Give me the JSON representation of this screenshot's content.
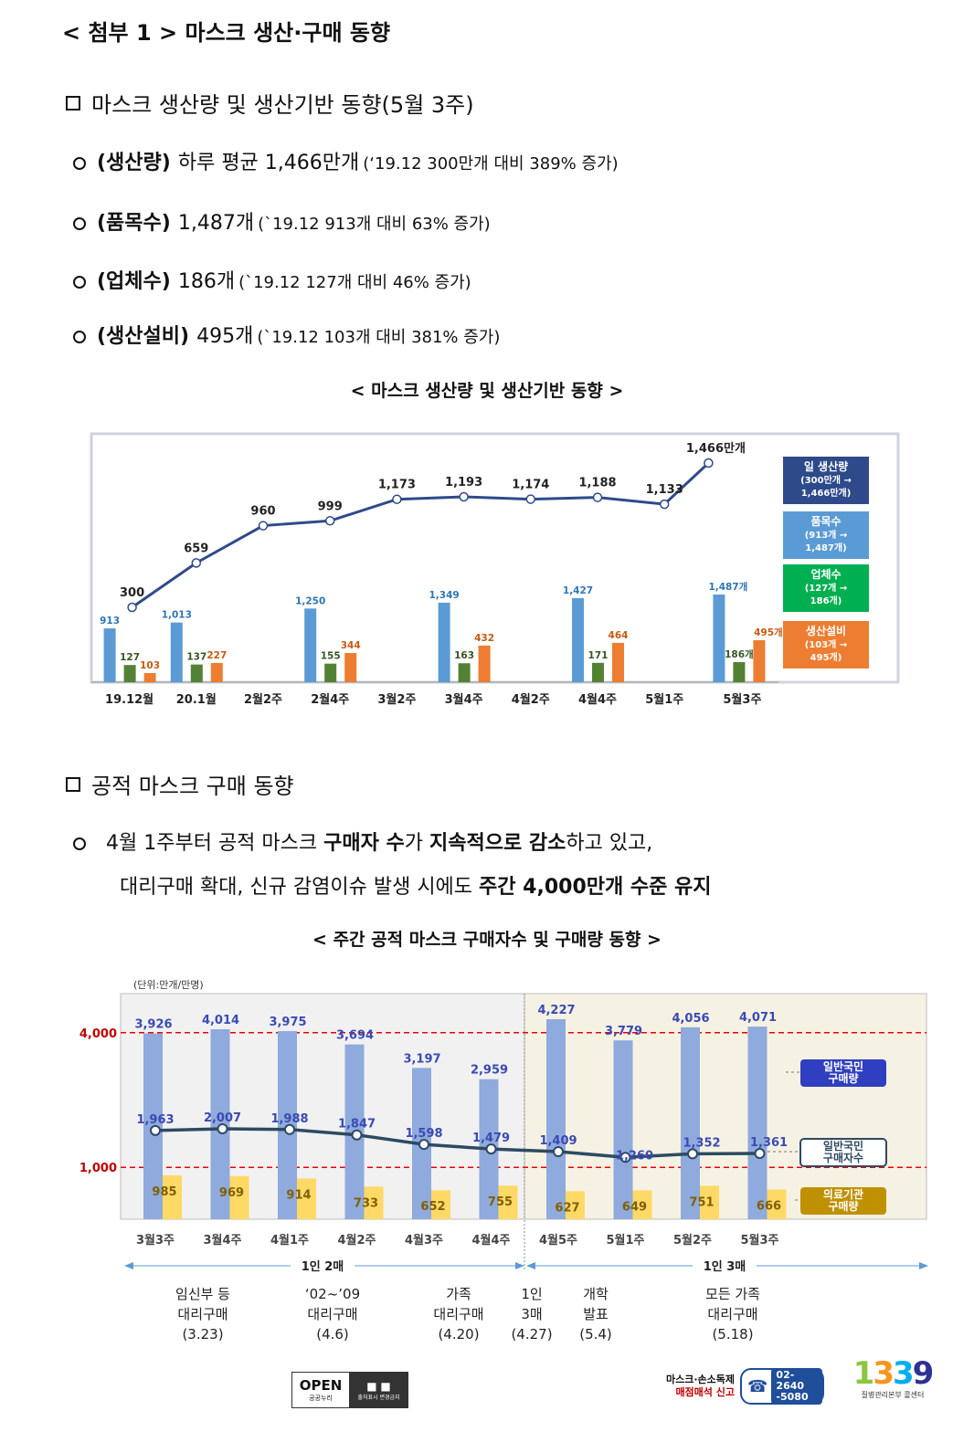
{
  "title": "< 첨부 1 > 마스크 생산·구매 동향",
  "section1": {
    "heading": "마스크 생산량 및 생산기반 동향(5월 3주)",
    "bullets": [
      {
        "label": "(생산량)",
        "value": "하루 평균 1,466만개",
        "note": "(‘19.12 300만개 대비 389% 증가)"
      },
      {
        "label": "(품목수)",
        "value": "1,487개",
        "note": "(`19.12 913개 대비  63% 증가)"
      },
      {
        "label": "(업체수)",
        "value": "186개",
        "note": "(`19.12 127개 대비 46% 증가)"
      },
      {
        "label": "(생산설비)",
        "value": "495개",
        "note": "(`19.12 103개 대비 381% 증가)"
      }
    ],
    "chart_caption": "< 마스크 생산량 및 생산기반 동향 >"
  },
  "section2": {
    "heading": "공적 마스크 구매 동향",
    "para": {
      "line1": [
        "4월 1주부터 공적 마스크 ",
        "구매자 수",
        "가 ",
        "지속적으로 감소",
        "하고 있고,"
      ],
      "line2": [
        "대리구매 확대, 신규 감염이슈 발생 시에도 ",
        "주간 4,000만개 수준 유지"
      ]
    },
    "chart_caption": "< 주간 공적 마스크 구매자수 및 구매량 동향 >"
  },
  "chart_data": [
    {
      "type": "bar",
      "title": "< 마스크 생산량 및 생산기반 동향 >",
      "categories": [
        "19.12월",
        "20.1월",
        "2월2주",
        "2월4주",
        "3월2주",
        "3월4주",
        "4월2주",
        "4월4주",
        "5월1주",
        "5월3주"
      ],
      "line_series": {
        "name": "일 생산량",
        "values": [
          300,
          659,
          960,
          999,
          1173,
          1193,
          1174,
          1188,
          1133,
          1466
        ],
        "labels": [
          "300",
          "659",
          "960",
          "999",
          "1,173",
          "1,193",
          "1,174",
          "1,188",
          "1,133",
          "1,466만개"
        ]
      },
      "bar_series": [
        {
          "name": "품목수",
          "color": "#5b9bd5",
          "values": [
            913,
            1013,
            null,
            1250,
            null,
            1349,
            null,
            1427,
            null,
            1487
          ],
          "labels": [
            "913",
            "1,013",
            "",
            "1,250",
            "",
            "1,349",
            "",
            "1,427",
            "",
            "1,487개"
          ]
        },
        {
          "name": "업체수",
          "color": "#548235",
          "values": [
            127,
            137,
            null,
            155,
            null,
            163,
            null,
            171,
            null,
            186
          ],
          "labels": [
            "127",
            "137",
            "",
            "155",
            "",
            "163",
            "",
            "171",
            "",
            "186개"
          ]
        },
        {
          "name": "생산설비",
          "color": "#ed7d31",
          "values": [
            103,
            227,
            null,
            344,
            null,
            432,
            null,
            464,
            null,
            495
          ],
          "labels": [
            "103",
            "227",
            "",
            "344",
            "",
            "432",
            "",
            "464",
            "",
            "495개"
          ]
        }
      ],
      "legend": [
        {
          "text": [
            "일 생산량",
            "(300만개 →",
            "1,466만개)"
          ],
          "color": "#2f4a8a"
        },
        {
          "text": [
            "품목수",
            "(913개 →",
            "1,487개)"
          ],
          "color": "#5b9bd5"
        },
        {
          "text": [
            "업체수",
            "(127개 →",
            "186개)"
          ],
          "color": "#00b050"
        },
        {
          "text": [
            "생산설비",
            "(103개 →",
            "495개)"
          ],
          "color": "#ed7d31"
        }
      ],
      "legend_position": "right"
    },
    {
      "type": "bar",
      "title": "< 주간 공적 마스크 구매자수 및 구매량 동향 >",
      "unit": "(단위:만개/만명)",
      "categories": [
        "3월3주",
        "3월4주",
        "4월1주",
        "4월2주",
        "4월3주",
        "4월4주",
        "4월5주",
        "5월1주",
        "5월2주",
        "5월3주"
      ],
      "series": [
        {
          "name": "일반국민 구매량",
          "type": "bar",
          "color": "#8faadc",
          "values": [
            3926,
            4014,
            3975,
            3694,
            3197,
            2959,
            4227,
            3779,
            4056,
            4071
          ],
          "labels": [
            "3,926",
            "4,014",
            "3,975",
            "3,694",
            "3,197",
            "2,959",
            "4,227",
            "3,779",
            "4,056",
            "4,071"
          ]
        },
        {
          "name": "일반국민 구매자수",
          "type": "line",
          "color": "#2e4a62",
          "values": [
            1963,
            2007,
            1988,
            1847,
            1598,
            1479,
            1409,
            1260,
            1352,
            1361
          ],
          "labels": [
            "1,963",
            "2,007",
            "1,988",
            "1,847",
            "1,598",
            "1,479",
            "1,409",
            "1,260",
            "1,352",
            "1,361"
          ]
        },
        {
          "name": "의료기관 구매량",
          "type": "bar",
          "color": "#ffd966",
          "values": [
            985,
            969,
            914,
            733,
            652,
            755,
            627,
            649,
            751,
            666
          ],
          "labels": [
            "985",
            "969",
            "914",
            "733",
            "652",
            "755",
            "627",
            "649",
            "751",
            "666"
          ]
        }
      ],
      "reference_lines": [
        {
          "value": 4000,
          "label": "4,000"
        },
        {
          "value": 1000,
          "label": "1,000"
        }
      ],
      "legend": [
        {
          "text": [
            "일반국민",
            "구매량"
          ],
          "color": "#2f3fbf"
        },
        {
          "text": [
            "일반국민",
            "구매자수"
          ],
          "color": "#ffffff"
        },
        {
          "text": [
            "의료기관",
            "구매량"
          ],
          "color": "#bf9000"
        }
      ],
      "periods": [
        {
          "label": "1인 2매"
        },
        {
          "label": "1인 3매"
        }
      ],
      "events": [
        "임신부 등\n대리구매\n(3.23)",
        "‘02~’09\n대리구매\n(4.6)",
        "가족\n대리구매\n(4.20)",
        "1인\n3매\n(4.27)",
        "개학\n발표\n(5.4)",
        "모든 가족\n대리구매\n(5.18)"
      ]
    }
  ],
  "footer": {
    "open_label": "OPEN",
    "open_sub": "공공누리",
    "open_sub2": "출처표시 변경금지",
    "report_line1": "마스크·손소독제",
    "report_line2": "매점매석 신고",
    "phone1": "02-2640",
    "phone2": "-5080",
    "hotline": "1339",
    "hotline_sub": "질병관리본부 콜센터"
  }
}
